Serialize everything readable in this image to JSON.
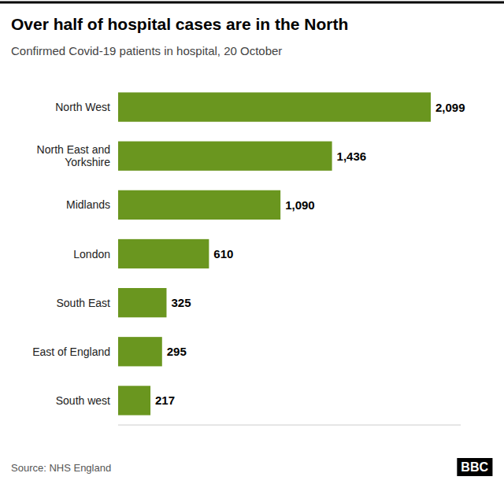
{
  "chart_data": {
    "type": "bar",
    "orientation": "horizontal",
    "title": "Over half of hospital cases are in the North",
    "subtitle": "Confirmed Covid-19 patients in hospital, 20 October",
    "source": "Source: NHS England",
    "annotations": [
      "BBC"
    ],
    "categories": [
      "North West",
      "North East and\nYorkshire",
      "Midlands",
      "London",
      "South East",
      "East of England",
      "South west"
    ],
    "values": [
      2099,
      1436,
      1090,
      610,
      325,
      295,
      217
    ],
    "value_labels": [
      "2,099",
      "1,436",
      "1,090",
      "610",
      "325",
      "295",
      "217"
    ],
    "data_labels": true,
    "color": "#6a961f",
    "xlim": [
      0,
      2300
    ],
    "tick_labels": "y",
    "grid": false
  }
}
